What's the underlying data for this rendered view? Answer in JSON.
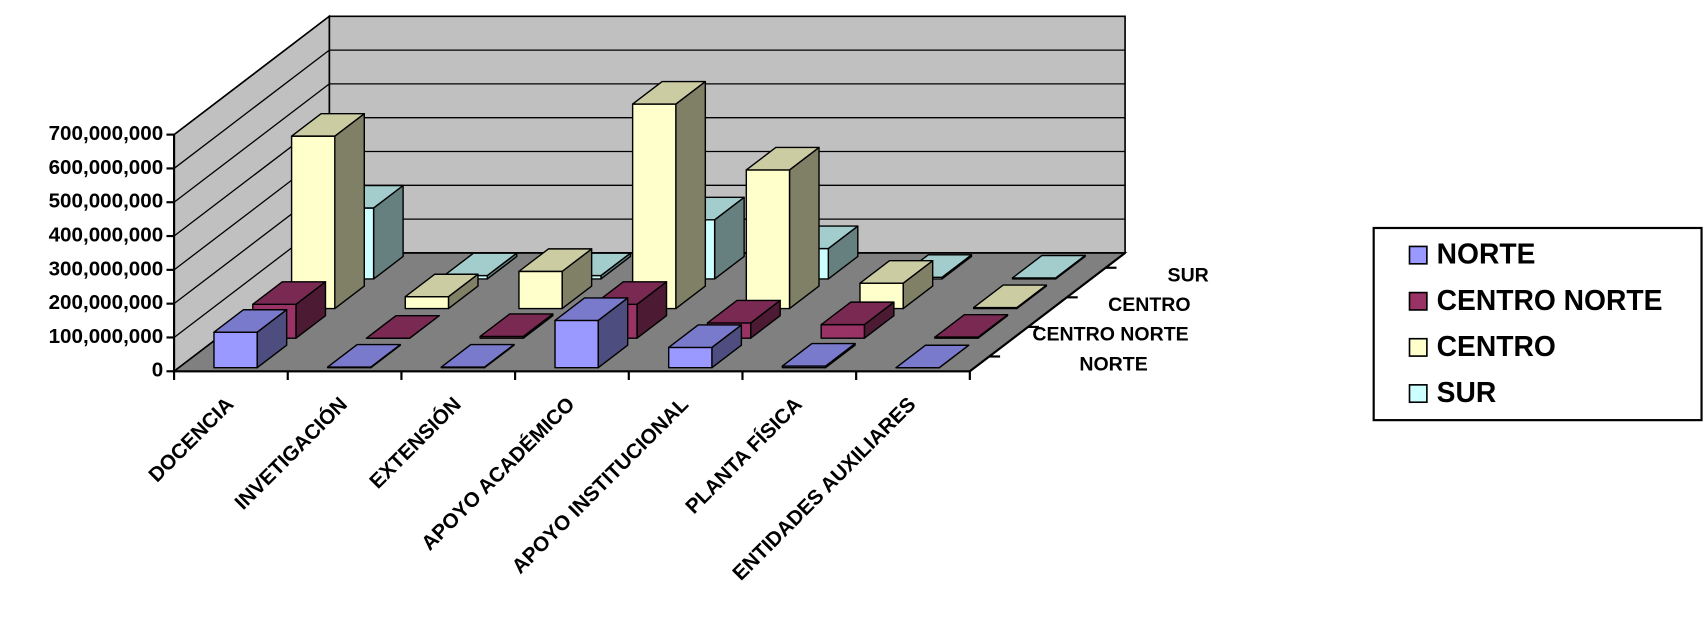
{
  "chart_data": {
    "type": "bar3d",
    "categories": [
      "DOCENCIA",
      "INVETIGACIÓN",
      "EXTENSIÓN",
      "APOYO ACADÉMICO",
      "APOYO INSTITUCIONAL",
      "PLANTA FÍSICA",
      "ENTIDADES AUXILIARES"
    ],
    "series": [
      {
        "name": "NORTE",
        "color": "#9999ff",
        "values": [
          105000000,
          2000000,
          2000000,
          140000000,
          60000000,
          5000000,
          0
        ]
      },
      {
        "name": "CENTRO NORTE",
        "color": "#993366",
        "values": [
          100000000,
          0,
          5000000,
          100000000,
          45000000,
          40000000,
          3000000
        ]
      },
      {
        "name": "CENTRO",
        "color": "#ffffcc",
        "values": [
          510000000,
          35000000,
          110000000,
          605000000,
          410000000,
          75000000,
          3000000
        ]
      },
      {
        "name": "SUR",
        "color": "#ccffff",
        "values": [
          210000000,
          10000000,
          10000000,
          175000000,
          90000000,
          5000000,
          3000000
        ]
      }
    ],
    "ylim": [
      0,
      700000000
    ],
    "yticks": [
      0,
      {
        "value": 100000000,
        "label": "100,000,000"
      },
      {
        "value": 200000000,
        "label": "200,000,000"
      },
      {
        "value": 300000000,
        "label": "300,000,000"
      },
      {
        "value": 400000000,
        "label": "400,000,000"
      },
      {
        "value": 500000000,
        "label": "500,000,000"
      },
      {
        "value": 600000000,
        "label": "600,000,000"
      },
      {
        "value": 700000000,
        "label": "700,000,000"
      }
    ],
    "grid": true,
    "legend": "right"
  }
}
